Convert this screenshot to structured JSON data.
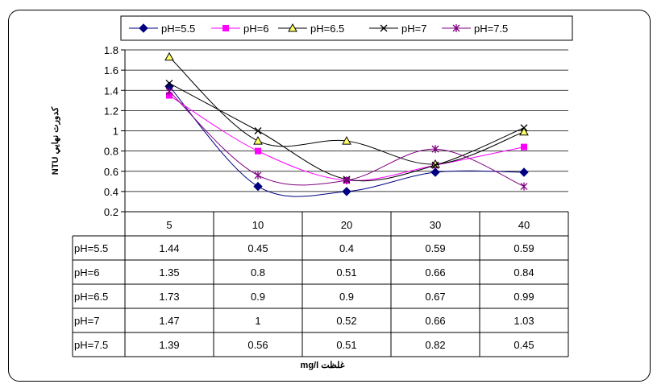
{
  "chart_data": {
    "type": "line",
    "smoothed": true,
    "categories": [
      "5",
      "10",
      "20",
      "30",
      "40"
    ],
    "series": [
      {
        "name": "pH=5.5",
        "values": [
          1.44,
          0.45,
          0.4,
          0.59,
          0.59
        ],
        "color": "#000080",
        "marker": "diamond"
      },
      {
        "name": "pH=6",
        "values": [
          1.35,
          0.8,
          0.51,
          0.66,
          0.84
        ],
        "color": "#FF00FF",
        "marker": "square"
      },
      {
        "name": "pH=6.5",
        "values": [
          1.73,
          0.9,
          0.9,
          0.67,
          0.99
        ],
        "color": "#000000",
        "marker": "triangle",
        "marker_fill": "#FFFF66"
      },
      {
        "name": "pH=7",
        "values": [
          1.47,
          1,
          0.52,
          0.66,
          1.03
        ],
        "color": "#000000",
        "marker": "x"
      },
      {
        "name": "pH=7.5",
        "values": [
          1.39,
          0.56,
          0.51,
          0.82,
          0.45
        ],
        "color": "#800080",
        "marker": "star"
      }
    ],
    "table_values": [
      [
        "1.44",
        "0.45",
        "0.4",
        "0.59",
        "0.59"
      ],
      [
        "1.35",
        "0.8",
        "0.51",
        "0.66",
        "0.84"
      ],
      [
        "1.73",
        "0.9",
        "0.9",
        "0.67",
        "0.99"
      ],
      [
        "1.47",
        "1",
        "0.52",
        "0.66",
        "1.03"
      ],
      [
        "1.39",
        "0.56",
        "0.51",
        "0.82",
        "0.45"
      ]
    ],
    "y_ticks": [
      "0.2",
      "0.4",
      "0.6",
      "0.8",
      "1",
      "1.2",
      "1.4",
      "1.6",
      "1.8"
    ],
    "ylim": [
      0.2,
      1.8
    ],
    "xlabel": "غلظت mg/l",
    "ylabel": "كدورت نهايي NTU",
    "grid": true,
    "legend_position": "top",
    "data_table": true
  }
}
